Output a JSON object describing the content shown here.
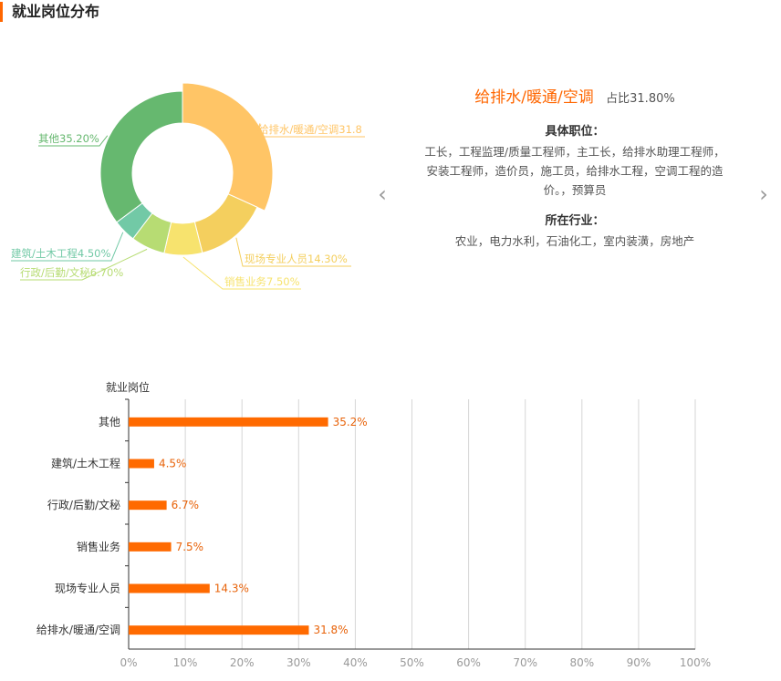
{
  "header": {
    "title": "就业岗位分布"
  },
  "detail": {
    "name": "给排水/暖通/空调",
    "ratio_label": "占比31.80%",
    "positions_title": "具体职位：",
    "positions_text": "工长，工程监理/质量工程师，主工长，给排水助理工程师，安装工程师，造价员，施工员，给排水工程，空调工程的造价。，预算员",
    "industries_title": "所在行业：",
    "industries_text": "农业，电力水利，石油化工，室内装潢，房地产"
  },
  "nav": {
    "prev_icon": "chevron-left-icon",
    "next_icon": "chevron-right-icon"
  },
  "chart_data": [
    {
      "type": "pie",
      "donut": true,
      "slices": [
        {
          "name": "给排水/暖通/空调",
          "value": 31.8,
          "label": "给排水/暖通/空调31.8",
          "color": "#ffc566",
          "highlighted": true
        },
        {
          "name": "现场专业人员",
          "value": 14.3,
          "label": "现场专业人员14.30%",
          "color": "#f4cf5e"
        },
        {
          "name": "销售业务",
          "value": 7.5,
          "label": "销售业务7.50%",
          "color": "#f7e36e"
        },
        {
          "name": "行政/后勤/文秘",
          "value": 6.7,
          "label": "行政/后勤/文秘6.70%",
          "color": "#b7dc73"
        },
        {
          "name": "建筑/土木工程",
          "value": 4.5,
          "label": "建筑/土木工程4.50%",
          "color": "#72c9a6"
        },
        {
          "name": "其他",
          "value": 35.2,
          "label": "其他35.20%",
          "color": "#66b86f"
        }
      ]
    },
    {
      "type": "bar",
      "orientation": "horizontal",
      "ylabel": "就业岗位",
      "categories": [
        "其他",
        "建筑/土木工程",
        "行政/后勤/文秘",
        "销售业务",
        "现场专业人员",
        "给排水/暖通/空调"
      ],
      "values": [
        35.2,
        4.5,
        6.7,
        7.5,
        14.3,
        31.8
      ],
      "value_labels": [
        "35.2%",
        "4.5%",
        "6.7%",
        "7.5%",
        "14.3%",
        "31.8%"
      ],
      "xlim": [
        0,
        100
      ],
      "x_ticks": [
        "0%",
        "10%",
        "20%",
        "30%",
        "40%",
        "50%",
        "60%",
        "70%",
        "80%",
        "90%",
        "100%"
      ],
      "grid": true,
      "color": "#ff6a00"
    }
  ]
}
